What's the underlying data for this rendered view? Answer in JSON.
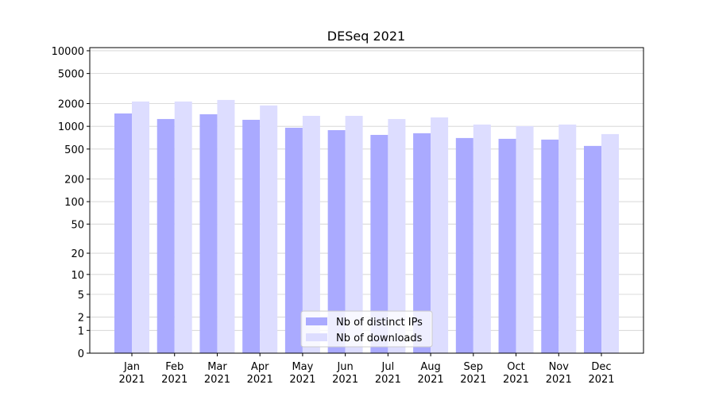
{
  "chart_data": {
    "type": "bar",
    "title": "DESeq 2021",
    "categories": [
      "Jan 2021",
      "Feb 2021",
      "Mar 2021",
      "Apr 2021",
      "May 2021",
      "Jun 2021",
      "Jul 2021",
      "Aug 2021",
      "Sep 2021",
      "Oct 2021",
      "Nov 2021",
      "Dec 2021"
    ],
    "series": [
      {
        "name": "Nb of distinct IPs",
        "color": "#aaaaff",
        "values": [
          1480,
          1250,
          1445,
          1220,
          958,
          890,
          770,
          810,
          700,
          683,
          667,
          550
        ]
      },
      {
        "name": "Nb of downloads",
        "color": "#ddddff",
        "values": [
          2130,
          2130,
          2235,
          1887,
          1377,
          1377,
          1250,
          1312,
          1056,
          1006,
          1056,
          790
        ]
      }
    ],
    "yscale": "symlog",
    "ylim": [
      0,
      11000
    ],
    "yticks": [
      0,
      1,
      2,
      5,
      10,
      20,
      50,
      100,
      200,
      500,
      1000,
      2000,
      5000,
      10000
    ],
    "grid": true,
    "legend": "lower center"
  }
}
